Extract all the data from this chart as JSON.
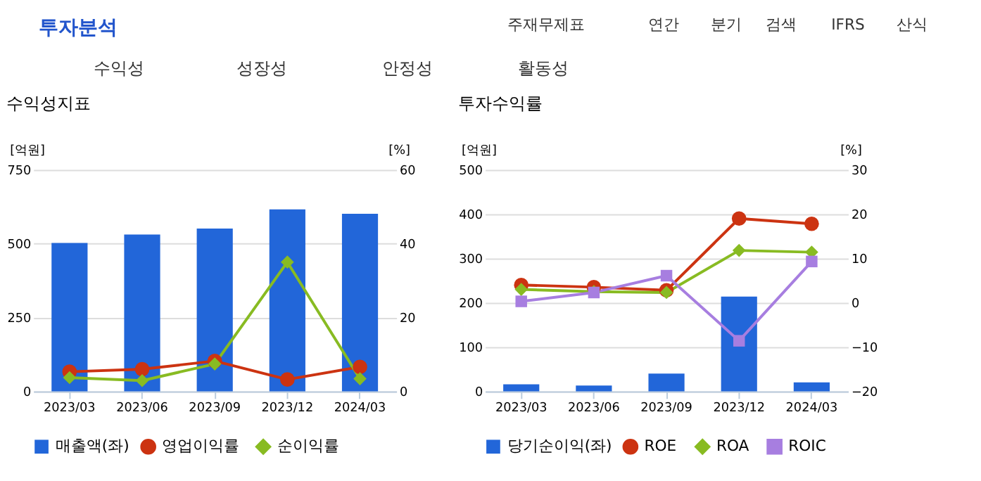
{
  "chart_data": [
    {
      "type": "other",
      "title": "투자분석",
      "annotations": [
        "주재무제표",
        "연간",
        "분기",
        "검색",
        "IFRS",
        "산식",
        "수익성",
        "성장성",
        "안정성",
        "활동성"
      ]
    },
    {
      "type": "bar",
      "title": "수익성지표",
      "ylabel": "[억원]",
      "y2label": "[%]",
      "categories": [
        "2023/03",
        "2023/06",
        "2023/09",
        "2023/12",
        "2024/03"
      ],
      "ylim": [
        0,
        750
      ],
      "yticks": [
        0,
        250,
        500,
        750
      ],
      "y2lim": [
        0,
        60
      ],
      "y2ticks": [
        0,
        20,
        40,
        60
      ],
      "grid": "y",
      "legend": "bottom",
      "series": [
        {
          "name": "매출액(좌)",
          "type": "bar",
          "color": "#2266d9",
          "values": [
            502,
            531,
            551,
            616,
            601
          ]
        },
        {
          "name": "영업이익률",
          "type": "line",
          "axis": "y2",
          "marker": "circle",
          "color": "#cc3311",
          "values": [
            5.3,
            6.0,
            8.2,
            3.2,
            6.6
          ]
        },
        {
          "name": "순이익률",
          "type": "line",
          "axis": "y2",
          "marker": "diamond",
          "color": "#88bb22",
          "values": [
            3.7,
            2.9,
            7.4,
            35.0,
            3.4
          ]
        }
      ]
    },
    {
      "type": "bar",
      "title": "투자수익률",
      "ylabel": "[억원]",
      "y2label": "[%]",
      "categories": [
        "2023/03",
        "2023/06",
        "2023/09",
        "2023/12",
        "2024/03"
      ],
      "ylim": [
        0,
        500
      ],
      "yticks": [
        0,
        100,
        200,
        300,
        400,
        500
      ],
      "y2lim": [
        -20,
        30
      ],
      "y2ticks": [
        -20,
        -10,
        0,
        10,
        20,
        30
      ],
      "grid": "y",
      "legend": "bottom",
      "series": [
        {
          "name": "당기순이익(좌)",
          "type": "bar",
          "color": "#2266d9",
          "values": [
            16,
            13,
            40,
            214,
            20
          ]
        },
        {
          "name": "ROE",
          "type": "line",
          "axis": "y2",
          "marker": "circle",
          "color": "#cc3311",
          "values": [
            4.0,
            3.5,
            2.8,
            19.0,
            17.8
          ]
        },
        {
          "name": "ROA",
          "type": "line",
          "axis": "y2",
          "marker": "diamond",
          "color": "#88bb22",
          "values": [
            3.0,
            2.5,
            2.3,
            11.8,
            11.4
          ]
        },
        {
          "name": "ROIC",
          "type": "line",
          "axis": "y2",
          "marker": "square",
          "color": "#a77ee0",
          "values": [
            0.3,
            2.3,
            6.1,
            -8.6,
            9.3
          ]
        }
      ]
    }
  ]
}
